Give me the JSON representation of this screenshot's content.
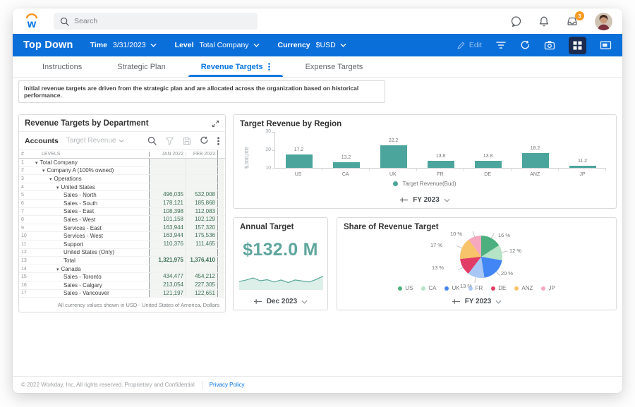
{
  "topbar": {
    "search_placeholder": "Search",
    "inbox_badge": "3"
  },
  "toolbar": {
    "title": "Top Down",
    "time_label": "Time",
    "time_value": "3/31/2023",
    "level_label": "Level",
    "level_value": "Total Company",
    "currency_label": "Currency",
    "currency_value": "$USD",
    "edit_label": "Edit"
  },
  "tabs": [
    {
      "label": "Instructions",
      "active": false
    },
    {
      "label": "Strategic Plan",
      "active": false
    },
    {
      "label": "Revenue Targets",
      "active": true
    },
    {
      "label": "Expense Targets",
      "active": false
    }
  ],
  "banner": "Initial revenue targets are driven from the strategic plan and are allocated across the organization based on historical performance.",
  "sheet": {
    "title": "Revenue Targets by Department",
    "view_label": "Accounts",
    "measure_label": "Target Revenue",
    "columns": [
      "#",
      "LEVELS",
      "JAN 2022",
      "FEB 2022"
    ],
    "rows": [
      {
        "n": 1,
        "label": "Total Company",
        "indent": 0,
        "caret": true,
        "jan": "",
        "feb": ""
      },
      {
        "n": 2,
        "label": "Company A (100% owned)",
        "indent": 1,
        "caret": true,
        "jan": "",
        "feb": ""
      },
      {
        "n": 3,
        "label": "Operations",
        "indent": 2,
        "caret": true,
        "jan": "",
        "feb": ""
      },
      {
        "n": 4,
        "label": "United States",
        "indent": 3,
        "caret": true,
        "jan": "",
        "feb": ""
      },
      {
        "n": 5,
        "label": "Sales - North",
        "indent": 4,
        "caret": false,
        "jan": "496,035",
        "feb": "532,008"
      },
      {
        "n": 6,
        "label": "Sales - South",
        "indent": 4,
        "caret": false,
        "jan": "178,121",
        "feb": "185,868"
      },
      {
        "n": 7,
        "label": "Sales - East",
        "indent": 4,
        "caret": false,
        "jan": "108,398",
        "feb": "112,083"
      },
      {
        "n": 8,
        "label": "Sales - West",
        "indent": 4,
        "caret": false,
        "jan": "101,158",
        "feb": "102,129"
      },
      {
        "n": 9,
        "label": "Services - East",
        "indent": 4,
        "caret": false,
        "jan": "163,944",
        "feb": "157,320"
      },
      {
        "n": 10,
        "label": "Services - West",
        "indent": 4,
        "caret": false,
        "jan": "163,944",
        "feb": "175,536"
      },
      {
        "n": 11,
        "label": "Support",
        "indent": 4,
        "caret": false,
        "jan": "110,376",
        "feb": "111,465"
      },
      {
        "n": 12,
        "label": "United States (Only)",
        "indent": 4,
        "caret": false,
        "jan": "",
        "feb": ""
      },
      {
        "n": 13,
        "label": "Total",
        "indent": 4,
        "caret": false,
        "jan": "1,321,975",
        "feb": "1,376,410",
        "bold": true
      },
      {
        "n": 14,
        "label": "Canada",
        "indent": 3,
        "caret": true,
        "jan": "",
        "feb": ""
      },
      {
        "n": 15,
        "label": "Sales - Toronto",
        "indent": 4,
        "caret": false,
        "jan": "434,477",
        "feb": "454,212"
      },
      {
        "n": 16,
        "label": "Sales - Calgary",
        "indent": 4,
        "caret": false,
        "jan": "213,054",
        "feb": "227,305"
      },
      {
        "n": 17,
        "label": "Sales - Vancouver",
        "indent": 4,
        "caret": false,
        "jan": "121,197",
        "feb": "122,651"
      }
    ],
    "footnote": "All currency values shown in USD - United States of America, Dollars"
  },
  "chart_data": [
    {
      "id": "target_revenue_by_region",
      "type": "bar",
      "title": "Target Revenue by Region",
      "categories": [
        "US",
        "CA",
        "UK",
        "FR",
        "DE",
        "ANZ",
        "JP"
      ],
      "values": [
        17.2,
        13.2,
        22.2,
        13.8,
        13.8,
        18.2,
        11.2
      ],
      "ylabel": "$,000,000",
      "ylim": [
        10,
        30
      ],
      "yticks": [
        10,
        20,
        30
      ],
      "grid": false,
      "legend": "Target Revenue(Bud)",
      "legend_position": "bottom",
      "period": "FY 2023",
      "bar_color": "#4ba59c"
    },
    {
      "id": "annual_target",
      "type": "area",
      "title": "Annual Target",
      "kpi_value": "$132.0 M",
      "period": "Dec 2023",
      "spark_values": [
        45,
        55,
        68,
        50,
        57,
        42,
        55,
        38,
        55,
        48,
        42,
        58,
        80
      ],
      "line_color": "#5aa79b",
      "fill_color": "#dcefe9"
    },
    {
      "id": "share_of_revenue_target",
      "type": "pie",
      "title": "Share of Revenue Target",
      "labels": [
        "US",
        "CA",
        "UK",
        "FR",
        "DE",
        "ANZ",
        "JP"
      ],
      "values_pct": [
        16,
        12,
        20,
        13,
        13,
        17,
        10
      ],
      "colors": [
        "#4caf7e",
        "#b5e3c5",
        "#4285f4",
        "#a9c7f4",
        "#e23d66",
        "#f7c46c",
        "#f6a8c0"
      ],
      "legend_position": "bottom",
      "period": "FY 2023"
    }
  ],
  "panels": {
    "bar": {
      "title": "Target Revenue by Region",
      "legend": "Target Revenue(Bud)",
      "period": "FY 2023"
    },
    "annual": {
      "title": "Annual Target",
      "value": "$132.0 M",
      "period": "Dec 2023"
    },
    "pie": {
      "title": "Share of Revenue Target",
      "period": "FY 2023"
    }
  },
  "footer": {
    "copyright": "© 2022 Workday, Inc. All rights reserved. Proprietary and Confidential",
    "link": "Privacy Policy"
  },
  "colors": {
    "brand_blue": "#0875e1",
    "toolbar_blue": "#0b6fd9",
    "teal": "#4ba59c",
    "badge_orange": "#f79b23"
  }
}
